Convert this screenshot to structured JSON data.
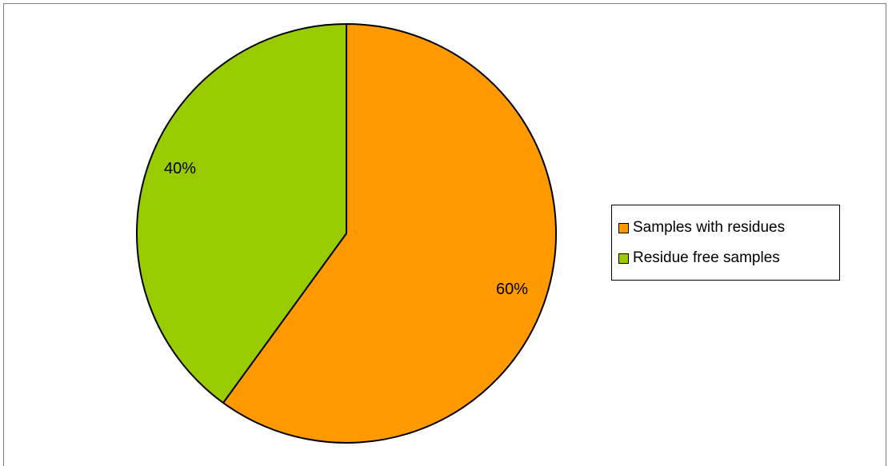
{
  "chart_data": {
    "type": "pie",
    "categories": [
      "Samples with residues",
      "Residue free samples"
    ],
    "values": [
      60,
      40
    ],
    "data_labels": [
      "60%",
      "40%"
    ],
    "colors": [
      "#FF9900",
      "#99CC00"
    ],
    "legend_position": "right",
    "start_angle": "12 o'clock",
    "direction": "clockwise"
  }
}
